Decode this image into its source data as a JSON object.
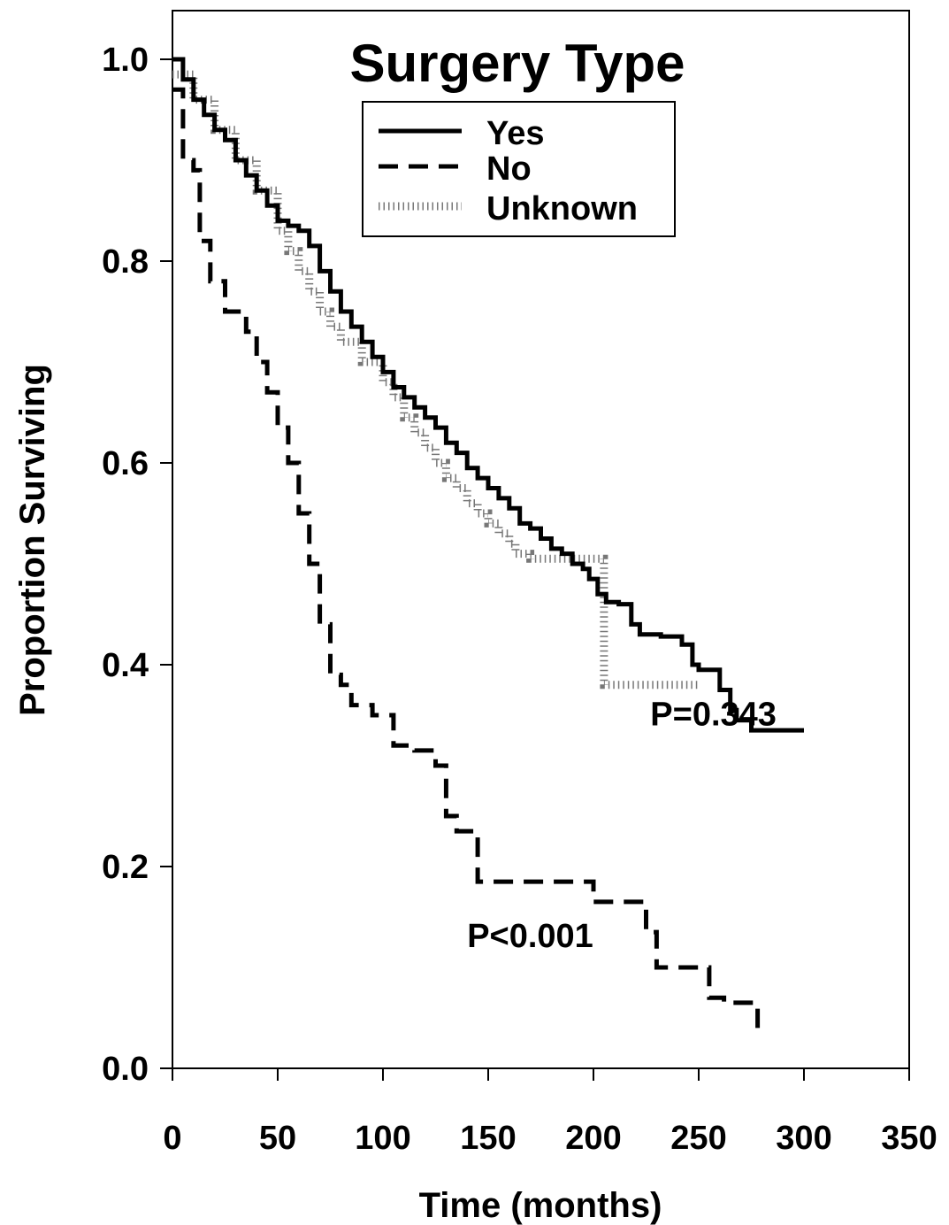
{
  "chart_data": {
    "type": "line",
    "title": "Surgery Type",
    "xlabel": "Time (months)",
    "ylabel": "Proportion Surviving",
    "xlim": [
      0,
      350
    ],
    "ylim": [
      0,
      1.0
    ],
    "x_ticks": [
      0,
      50,
      100,
      150,
      200,
      250,
      300,
      350
    ],
    "x_tick_labels": [
      "0",
      "50",
      "100",
      "150",
      "200",
      "250",
      "300",
      "350"
    ],
    "y_ticks": [
      0,
      0.2,
      0.4,
      0.6,
      0.8,
      1.0
    ],
    "y_tick_labels": [
      "0.0",
      "0.2",
      "0.4",
      "0.6",
      "0.8",
      "1.0"
    ],
    "grid": false,
    "legend": {
      "placement": "top-center",
      "entries": [
        "Yes",
        "No",
        "Unknown"
      ]
    },
    "annotations": [
      {
        "text": "P=0.343",
        "x": 227,
        "y": 0.34
      },
      {
        "text": "P<0.001",
        "x": 140,
        "y": 0.12
      }
    ],
    "series": [
      {
        "name": "Yes",
        "style": "solid",
        "color": "#000000",
        "points": [
          [
            0,
            1.0
          ],
          [
            5,
            0.98
          ],
          [
            10,
            0.96
          ],
          [
            15,
            0.945
          ],
          [
            20,
            0.93
          ],
          [
            25,
            0.92
          ],
          [
            30,
            0.9
          ],
          [
            35,
            0.885
          ],
          [
            40,
            0.87
          ],
          [
            45,
            0.855
          ],
          [
            50,
            0.84
          ],
          [
            55,
            0.835
          ],
          [
            60,
            0.83
          ],
          [
            65,
            0.815
          ],
          [
            70,
            0.79
          ],
          [
            75,
            0.77
          ],
          [
            80,
            0.75
          ],
          [
            85,
            0.735
          ],
          [
            90,
            0.72
          ],
          [
            95,
            0.705
          ],
          [
            100,
            0.69
          ],
          [
            105,
            0.675
          ],
          [
            110,
            0.665
          ],
          [
            115,
            0.655
          ],
          [
            120,
            0.645
          ],
          [
            125,
            0.635
          ],
          [
            130,
            0.62
          ],
          [
            135,
            0.61
          ],
          [
            140,
            0.595
          ],
          [
            145,
            0.585
          ],
          [
            150,
            0.575
          ],
          [
            155,
            0.565
          ],
          [
            160,
            0.555
          ],
          [
            165,
            0.54
          ],
          [
            170,
            0.535
          ],
          [
            175,
            0.525
          ],
          [
            180,
            0.515
          ],
          [
            185,
            0.51
          ],
          [
            190,
            0.5
          ],
          [
            195,
            0.495
          ],
          [
            198,
            0.485
          ],
          [
            202,
            0.47
          ],
          [
            206,
            0.462
          ],
          [
            212,
            0.46
          ],
          [
            218,
            0.44
          ],
          [
            222,
            0.43
          ],
          [
            232,
            0.428
          ],
          [
            242,
            0.42
          ],
          [
            247,
            0.4
          ],
          [
            250,
            0.395
          ],
          [
            260,
            0.375
          ],
          [
            265,
            0.355
          ],
          [
            268,
            0.345
          ],
          [
            275,
            0.335
          ],
          [
            300,
            0.335
          ]
        ]
      },
      {
        "name": "No",
        "style": "dashed",
        "color": "#000000",
        "points": [
          [
            0,
            0.97
          ],
          [
            5,
            0.9
          ],
          [
            10,
            0.89
          ],
          [
            13,
            0.82
          ],
          [
            18,
            0.78
          ],
          [
            25,
            0.75
          ],
          [
            35,
            0.73
          ],
          [
            40,
            0.7
          ],
          [
            45,
            0.67
          ],
          [
            50,
            0.635
          ],
          [
            55,
            0.6
          ],
          [
            60,
            0.55
          ],
          [
            65,
            0.5
          ],
          [
            70,
            0.44
          ],
          [
            75,
            0.39
          ],
          [
            80,
            0.38
          ],
          [
            85,
            0.36
          ],
          [
            95,
            0.35
          ],
          [
            105,
            0.32
          ],
          [
            115,
            0.315
          ],
          [
            125,
            0.3
          ],
          [
            130,
            0.25
          ],
          [
            135,
            0.235
          ],
          [
            145,
            0.185
          ],
          [
            195,
            0.185
          ],
          [
            200,
            0.165
          ],
          [
            225,
            0.135
          ],
          [
            230,
            0.1
          ],
          [
            255,
            0.07
          ],
          [
            262,
            0.065
          ],
          [
            278,
            0.04
          ]
        ]
      },
      {
        "name": "Unknown",
        "style": "dotted",
        "color": "#000000",
        "points": [
          [
            0,
            0.985
          ],
          [
            10,
            0.96
          ],
          [
            20,
            0.93
          ],
          [
            30,
            0.9
          ],
          [
            40,
            0.87
          ],
          [
            50,
            0.83
          ],
          [
            55,
            0.81
          ],
          [
            60,
            0.79
          ],
          [
            65,
            0.77
          ],
          [
            70,
            0.75
          ],
          [
            75,
            0.735
          ],
          [
            80,
            0.72
          ],
          [
            90,
            0.7
          ],
          [
            100,
            0.68
          ],
          [
            105,
            0.665
          ],
          [
            110,
            0.645
          ],
          [
            115,
            0.63
          ],
          [
            120,
            0.615
          ],
          [
            125,
            0.6
          ],
          [
            130,
            0.585
          ],
          [
            135,
            0.575
          ],
          [
            140,
            0.56
          ],
          [
            145,
            0.55
          ],
          [
            150,
            0.54
          ],
          [
            155,
            0.53
          ],
          [
            160,
            0.52
          ],
          [
            163,
            0.51
          ],
          [
            170,
            0.505
          ],
          [
            185,
            0.505
          ],
          [
            200,
            0.505
          ],
          [
            205,
            0.405
          ],
          [
            205,
            0.38
          ],
          [
            250,
            0.38
          ]
        ]
      }
    ]
  }
}
